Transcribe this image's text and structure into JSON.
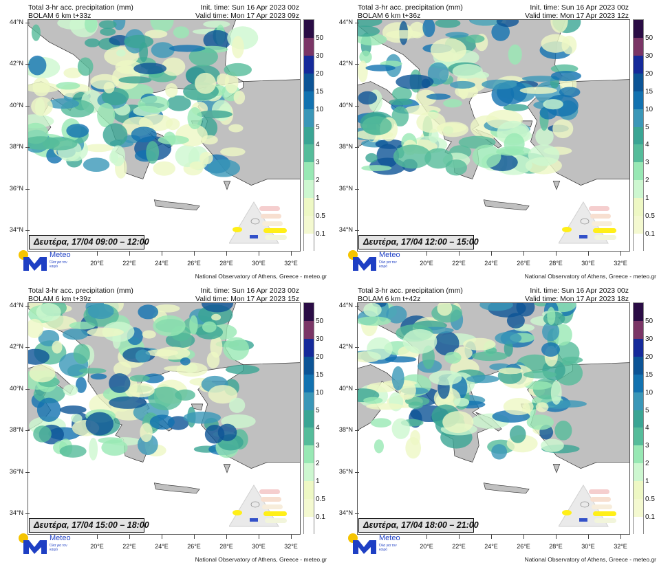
{
  "panels": [
    {
      "title": "Total 3-hr acc. precipitation (mm)",
      "model": "BOLAM 6 km t+33z",
      "init_time": "Init. time: Sun 16 Apr 2023 00z",
      "valid_time": "Valid time: Mon 17 Apr 2023 09z",
      "date_label": "Δευτέρα, 17/04 09:00 – 12:00"
    },
    {
      "title": "Total 3-hr acc. precipitation (mm)",
      "model": "BOLAM 6 km t+36z",
      "init_time": "Init. time: Sun 16 Apr 2023 00z",
      "valid_time": "Valid time: Mon 17 Apr 2023 12z",
      "date_label": "Δευτέρα, 17/04 12:00 – 15:00"
    },
    {
      "title": "Total 3-hr acc. precipitation (mm)",
      "model": "BOLAM 6 km t+39z",
      "init_time": "Init. time: Sun 16 Apr 2023 00z",
      "valid_time": "Valid time: Mon 17 Apr 2023 15z",
      "date_label": "Δευτέρα, 17/04 15:00 – 18:00"
    },
    {
      "title": "Total 3-hr acc. precipitation (mm)",
      "model": "BOLAM 6 km t+42z",
      "init_time": "Init. time: Sun 16 Apr 2023 00z",
      "valid_time": "Valid time: Mon 17 Apr 2023 18z",
      "date_label": "Δευτέρα, 17/04 18:00 – 21:00"
    }
  ],
  "lat_labels": [
    "44°N",
    "42°N",
    "40°N",
    "38°N",
    "36°N",
    "34°N"
  ],
  "lon_labels": [
    "20°E",
    "22°E",
    "24°E",
    "26°E",
    "28°E",
    "30°E",
    "32°E"
  ],
  "legend": {
    "labels": [
      "50",
      "30",
      "20",
      "15",
      "10",
      "5",
      "4",
      "3",
      "2",
      "1",
      "0.5",
      "0.1"
    ],
    "colors": [
      "#2a0c45",
      "#7a3566",
      "#152a9a",
      "#0c5496",
      "#1272b0",
      "#3a97b8",
      "#3aa594",
      "#55bc9a",
      "#98e8b4",
      "#cdf7d0",
      "#eef8c4",
      "#f4f9d0",
      "#ffffff"
    ]
  },
  "logo": {
    "name": "Meteo",
    "slogan": "Όλα για τον καιρό"
  },
  "footer": "National Observatory of Athens, Greece - meteo.gr",
  "colors": {
    "land": "#c0c0c0",
    "logo_blue": "#1e3fc4",
    "logo_yellow": "#f5c400"
  }
}
